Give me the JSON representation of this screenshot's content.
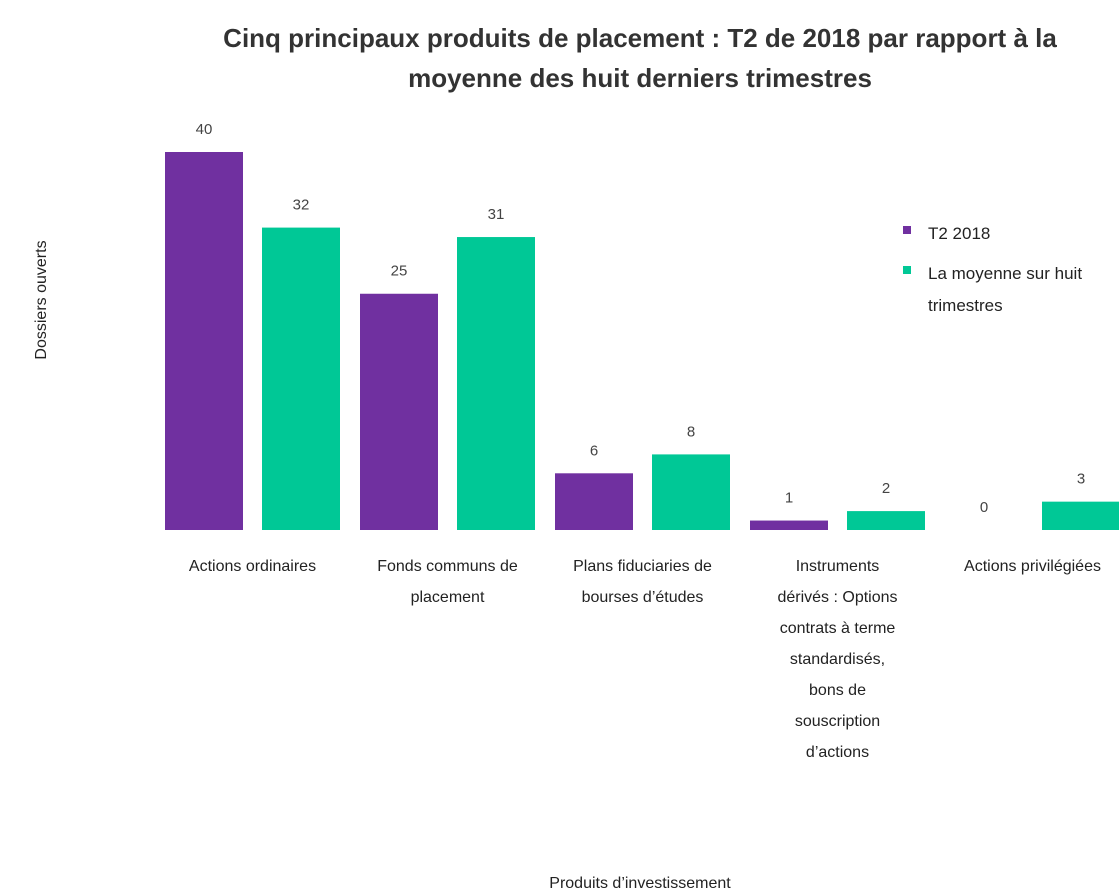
{
  "chart_data": {
    "type": "bar",
    "title": "Cinq principaux produits de placement : T2 de 2018 par rapport à la moyenne des huit derniers trimestres",
    "xlabel": "Produits d’investissement",
    "ylabel": "Dossiers ouverts",
    "categories": [
      "Actions ordinaires",
      "Fonds communs de placement",
      "Plans fiduciaries de bourses d’études",
      "Instruments dérivés : Options contrats à terme standardisés, bons de souscription d’actions",
      "Actions privilégiées"
    ],
    "series": [
      {
        "name": "T2 2018",
        "color": "#7030a0",
        "values": [
          40,
          25,
          6,
          1,
          0
        ]
      },
      {
        "name": "La moyenne sur huit trimestres",
        "color": "#00c896",
        "values": [
          32,
          31,
          8,
          2,
          3
        ]
      }
    ],
    "legend": "right",
    "grid": false
  }
}
